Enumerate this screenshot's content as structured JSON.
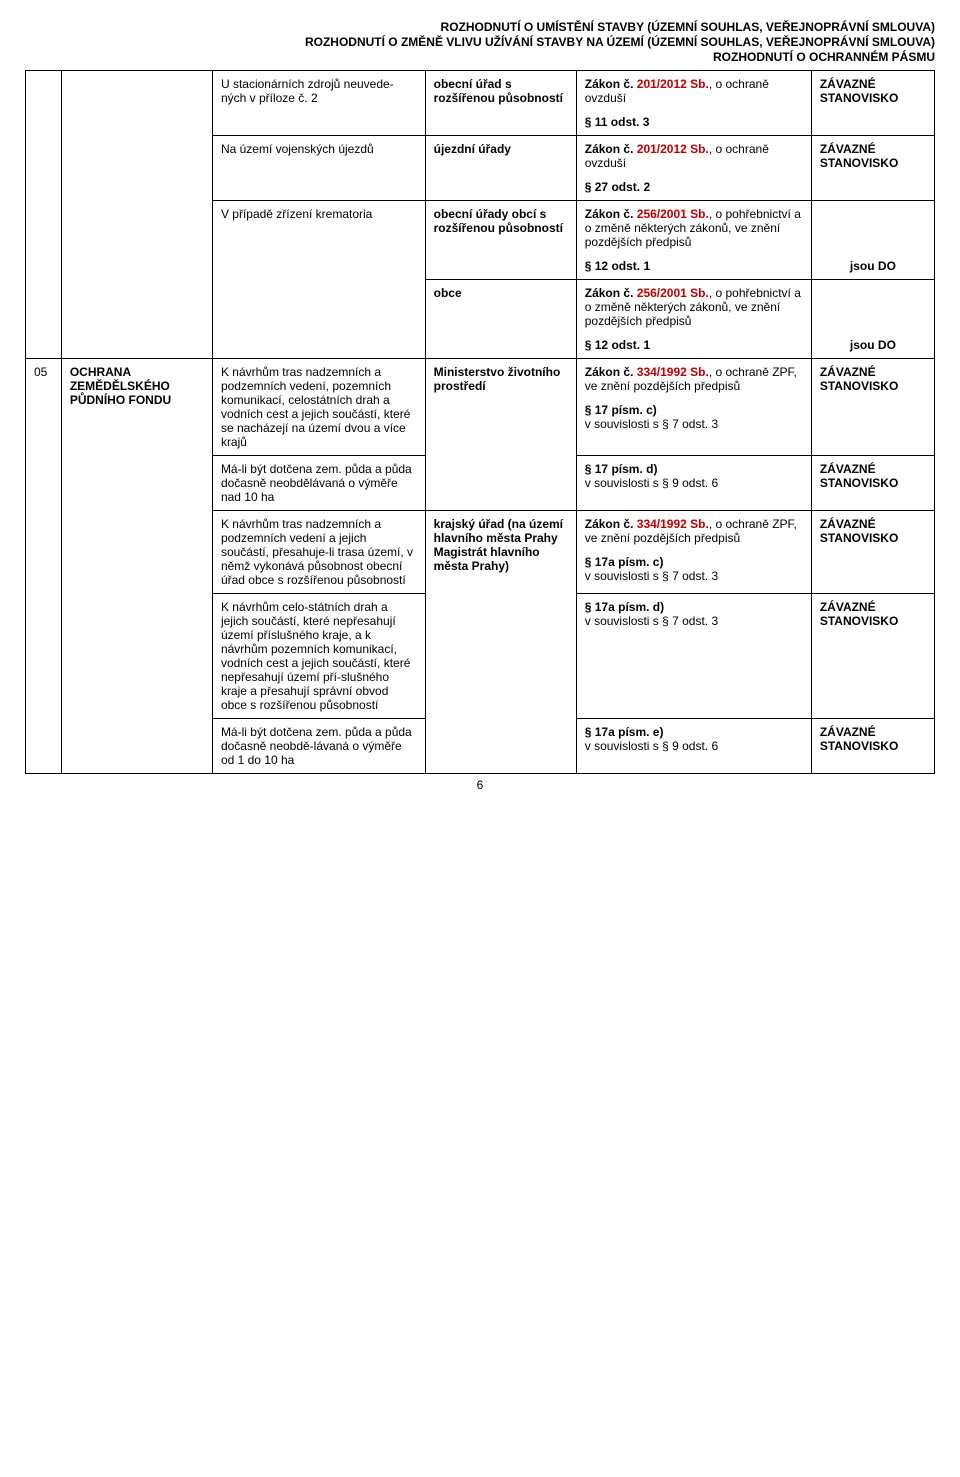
{
  "headers": {
    "h1": "ROZHODNUTÍ O UMÍSTĚNÍ STAVBY (ÚZEMNÍ SOUHLAS, VEŘEJNOPRÁVNÍ SMLOUVA)",
    "h2": "ROZHODNUTÍ O ZMĚNĚ VLIVU UŽÍVÁNÍ STAVBY NA ÚZEMÍ (ÚZEMNÍ SOUHLAS, VEŘEJNOPRÁVNÍ SMLOUVA)",
    "h3": "ROZHODNUTÍ  O OCHRANNÉM PÁSMU"
  },
  "rows": [
    {
      "col1": "",
      "col2": "",
      "col3": "U stacionárních zdrojů neuvede-ných v příloze č. 2",
      "col4": "obecní úřad s rozšířenou působností",
      "col5a": "Zákon č. 201/2012 Sb., o ochraně ovzduší",
      "col5b": "§ 11 odst. 3",
      "col6": "ZÁVAZNÉ STANOVISKO"
    },
    {
      "col1": "",
      "col2": "",
      "col3": "Na území vojenských újezdů",
      "col4": "újezdní úřady",
      "col5a": "Zákon č. 201/2012 Sb., o ochraně ovzduší",
      "col5b": "§ 27 odst. 2",
      "col6": "ZÁVAZNÉ STANOVISKO"
    },
    {
      "col1": "",
      "col2": "",
      "col3": "V případě zřízení krematoria",
      "col4": "obecní úřady obcí s rozšířenou působností",
      "col5a": "Zákon č. 256/2001 Sb., o pohřebnictví a o změně některých zákonů, ve znění pozdějších předpisů",
      "col5b": "§ 12 odst. 1",
      "col6": "jsou DO"
    },
    {
      "col1": "",
      "col2": "",
      "col3": "",
      "col4": "obce",
      "col5a": "Zákon č. 256/2001 Sb., o pohřebnictví a o změně některých zákonů, ve znění pozdějších předpisů",
      "col5b": "§ 12 odst. 1",
      "col6": "jsou DO"
    },
    {
      "col1": "05",
      "col2": "OCHRANA ZEMĚDĚLSKÉHO PŮDNÍHO FONDU",
      "col3": "K návrhům tras nadzemních a podzemních vedení, pozemních komunikací, celostátních drah a vodních cest a jejich součástí, které se nacházejí na území dvou a více krajů",
      "col4": "Ministerstvo životního prostředí",
      "col5a": "Zákon č. 334/1992 Sb., o ochraně ZPF, ve znění pozdějších předpisů",
      "col5b": "§ 17 písm. c)",
      "col5c": "v souvislosti s § 7 odst. 3",
      "col6": "ZÁVAZNÉ STANOVISKO"
    },
    {
      "col1": "",
      "col2": "",
      "col3": "Má-li být dotčena zem. půda a půda dočasně neobdělávaná o výměře nad 10 ha",
      "col4": "",
      "col5b": "§ 17 písm. d)",
      "col5c": "v souvislosti s § 9 odst. 6",
      "col6": "ZÁVAZNÉ STANOVISKO"
    },
    {
      "col1": "",
      "col2": "",
      "col3": "K návrhům tras nadzemních a podzemních vedení a jejich součástí, přesahuje-li trasa území, v němž vykonává působnost obecní úřad obce s rozšířenou působností",
      "col4": "krajský úřad (na území hlavního města Prahy Magistrát hlavního města Prahy)",
      "col5a": "Zákon č. 334/1992 Sb., o ochraně ZPF, ve znění pozdějších předpisů",
      "col5b": "§ 17a písm. c)",
      "col5c": "v souvislosti s § 7 odst. 3",
      "col6": "ZÁVAZNÉ STANOVISKO"
    },
    {
      "col1": "",
      "col2": "",
      "col3": "K návrhům celo-státních drah a jejich součástí, které nepřesahují území příslušného kraje, a k návrhům pozemních komunikací, vodních cest a jejich součástí, které nepřesahují území pří-slušného kraje a přesahují správní obvod obce s rozšířenou působností",
      "col4": "",
      "col5b": "§ 17a písm. d)",
      "col5c": "v souvislosti s § 7 odst. 3",
      "col6": "ZÁVAZNÉ STANOVISKO"
    },
    {
      "col1": "",
      "col2": "",
      "col3": "Má-li být dotčena zem. půda a půda dočasně neobdě-lávaná o výměře od 1 do 10 ha",
      "col4": "",
      "col5b": "§ 17a písm. e)",
      "col5c": "v souvislosti s § 9 odst. 6",
      "col6": "ZÁVAZNÉ STANOVISKO"
    }
  ],
  "labels": {
    "zakon": "Zákon č. ",
    "law2012": "201/2012 Sb.",
    "law2001": "256/2001 Sb.",
    "law1992": "334/1992 Sb."
  },
  "pagenum": "6"
}
